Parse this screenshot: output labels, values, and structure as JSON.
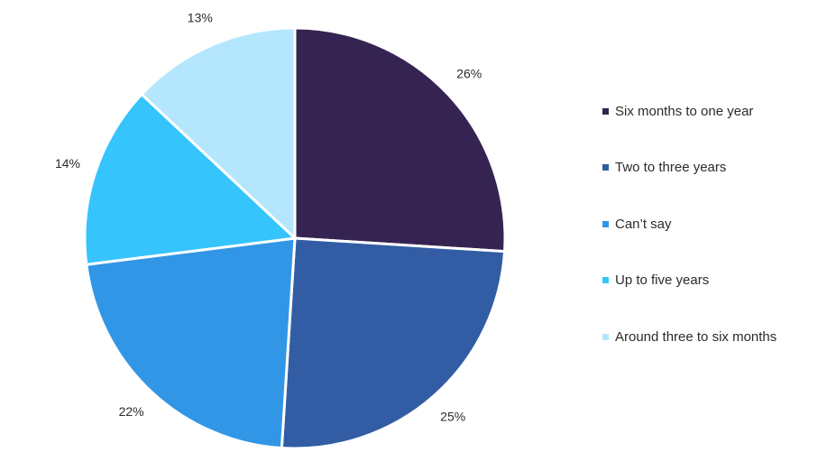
{
  "chart_data": {
    "type": "pie",
    "title": "",
    "slices": [
      {
        "label": "Six months to one year",
        "value": 26,
        "display": "26%",
        "color": "#352452"
      },
      {
        "label": "Two to three years",
        "value": 25,
        "display": "25%",
        "color": "#325da4"
      },
      {
        "label": "Can’t say",
        "value": 22,
        "display": "22%",
        "color": "#3196e6"
      },
      {
        "label": "Up to five years",
        "value": 14,
        "display": "14%",
        "color": "#35c4fc"
      },
      {
        "label": "Around three to six months",
        "value": 13,
        "display": "13%",
        "color": "#b4e7fd"
      }
    ],
    "start_angle": "12 o'clock",
    "direction": "clockwise",
    "legend_position": "right",
    "units": "percent"
  }
}
